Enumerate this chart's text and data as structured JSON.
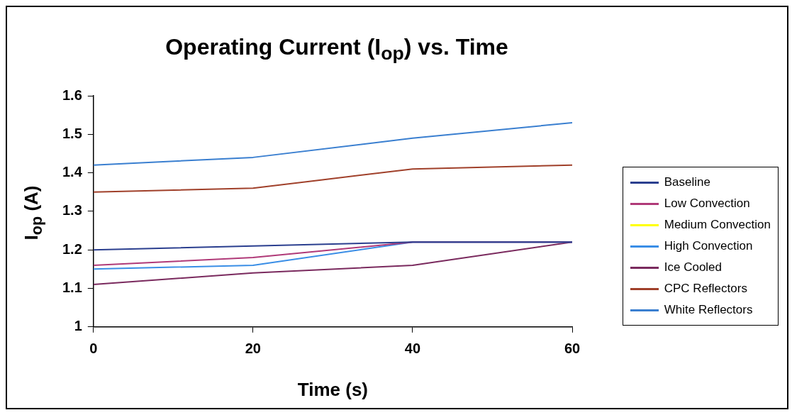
{
  "chart_data": {
    "type": "line",
    "title": "Operating Current (I$_{op}$) vs. Time",
    "xlabel": "Time (s)",
    "ylabel": "I$_{op}$ (A)",
    "x": [
      0,
      20,
      40,
      60
    ],
    "xlim": [
      0,
      60
    ],
    "xticks": [
      0,
      20,
      40,
      60
    ],
    "ylim": [
      1,
      1.6
    ],
    "yticks": [
      1,
      1.1,
      1.2,
      1.3,
      1.4,
      1.5,
      1.6
    ],
    "grid": false,
    "legend": "right",
    "marker": "none",
    "line_style": "solid",
    "series": [
      {
        "name": "Baseline",
        "color": "#2b3f8f",
        "values": [
          1.2,
          1.21,
          1.22,
          1.22
        ]
      },
      {
        "name": "Low Convection",
        "color": "#b03a78",
        "values": [
          1.16,
          1.18,
          1.22,
          1.22
        ]
      },
      {
        "name": "Medium Convection",
        "color": "#ffff00",
        "values": [
          null,
          null,
          null,
          null
        ]
      },
      {
        "name": "High Convection",
        "color": "#3a8ee6",
        "values": [
          1.15,
          1.16,
          1.22,
          1.22
        ]
      },
      {
        "name": "Ice Cooled",
        "color": "#7a2a5e",
        "values": [
          1.11,
          1.14,
          1.16,
          1.22
        ]
      },
      {
        "name": "CPC Reflectors",
        "color": "#a0402a",
        "values": [
          1.35,
          1.36,
          1.41,
          1.42
        ]
      },
      {
        "name": "White Reflectors",
        "color": "#3a7fd0",
        "values": [
          1.42,
          1.44,
          1.49,
          1.53
        ]
      }
    ]
  }
}
